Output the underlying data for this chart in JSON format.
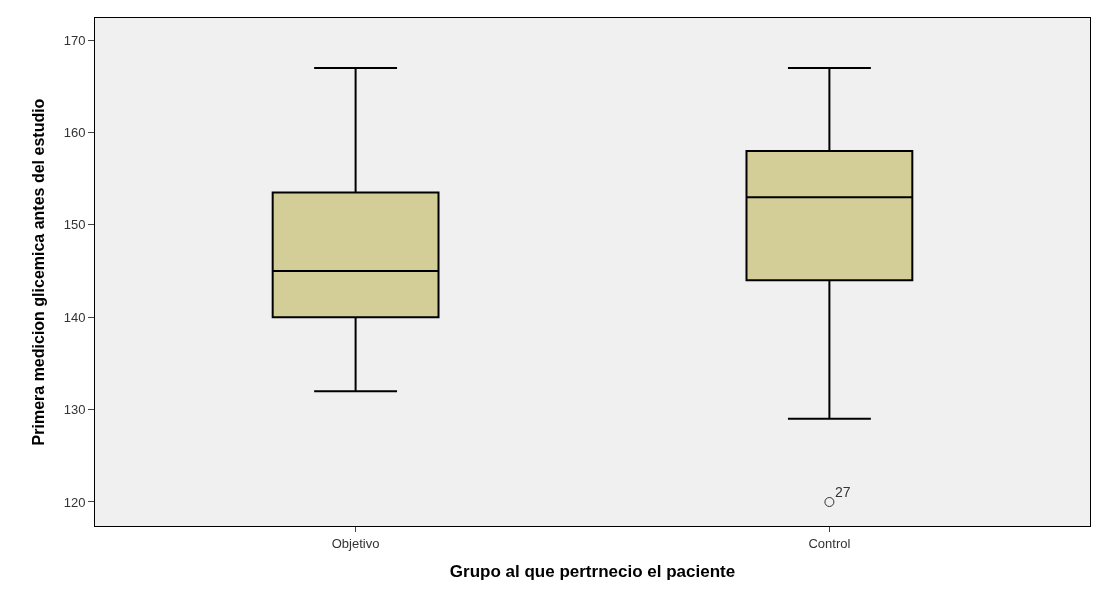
{
  "chart_data": {
    "type": "box",
    "xlabel": "Grupo al que pertrnecio el paciente",
    "ylabel": "Primera medicion glicemica antes del estudio",
    "categories": [
      "Objetivo",
      "Control"
    ],
    "boxes": [
      {
        "low": 132,
        "q1": 140,
        "median": 145,
        "q3": 153.5,
        "high": 167
      },
      {
        "low": 129,
        "q1": 144,
        "median": 153,
        "q3": 158,
        "high": 167,
        "outliers": [
          120
        ]
      }
    ],
    "color": "#d3cd98",
    "ylim": [
      117.4,
      172.4
    ],
    "yticks": [
      120,
      130,
      140,
      150,
      160,
      170
    ],
    "annotations": [
      "27"
    ]
  }
}
